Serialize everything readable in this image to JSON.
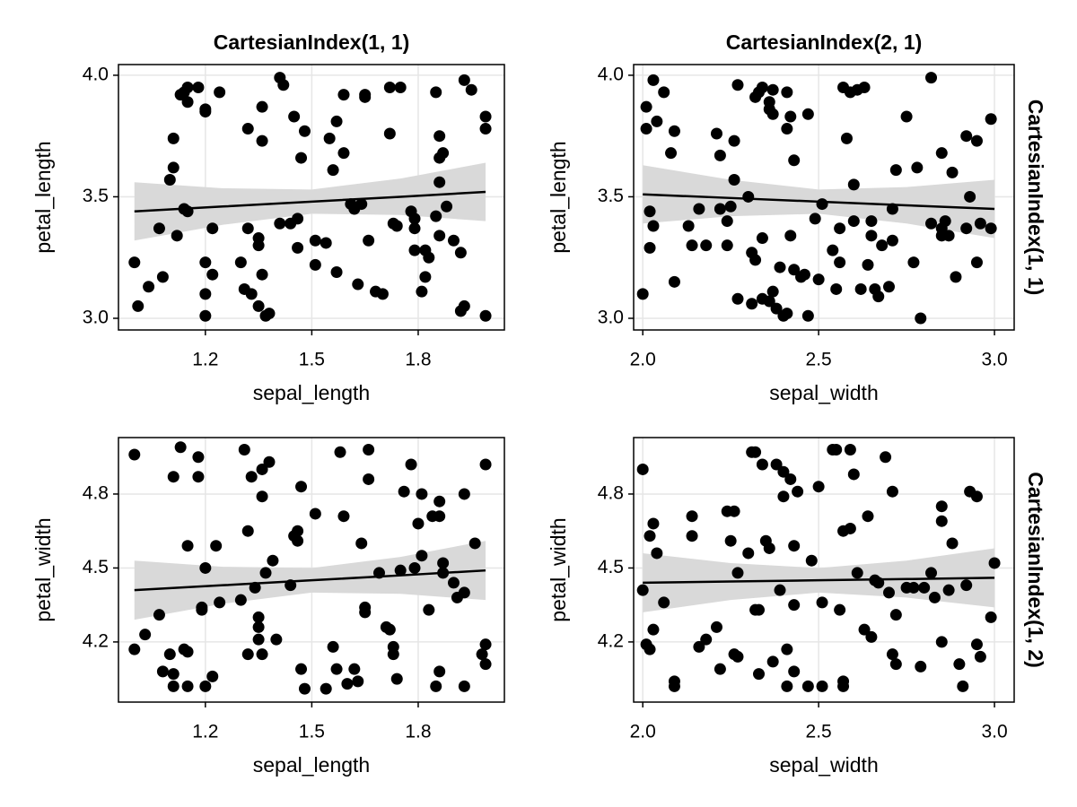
{
  "chart_data": [
    {
      "type": "scatter",
      "title": "CartesianIndex(1, 1)",
      "x_label": "sepal_length",
      "y_label": "petal_length",
      "xlim": [
        0.955,
        2.043
      ],
      "ylim": [
        2.952,
        4.044
      ],
      "xticks": [
        1.2,
        1.5,
        1.8
      ],
      "yticks": [
        {
          "value": 3,
          "label": "3.0"
        },
        3.5,
        {
          "value": 4,
          "label": "4.0"
        }
      ],
      "grid": true,
      "series": [
        {
          "color": "#000000",
          "x": [
            1.0,
            1.01,
            1.04,
            1.08,
            1.07,
            1.1,
            1.11,
            1.11,
            1.12,
            1.13,
            1.14,
            1.15,
            1.15,
            1.14,
            1.15,
            1.18,
            1.2,
            1.2,
            1.2,
            1.2,
            1.2,
            1.22,
            1.22,
            1.24,
            1.3,
            1.31,
            1.32,
            1.32,
            1.33,
            1.35,
            1.35,
            1.35,
            1.36,
            1.36,
            1.36,
            1.37,
            1.38,
            1.41,
            1.41,
            1.42,
            1.44,
            1.45,
            1.46,
            1.46,
            1.47,
            1.48,
            1.51,
            1.51,
            1.54,
            1.55,
            1.56,
            1.57,
            1.57,
            1.59,
            1.59,
            1.61,
            1.62,
            1.63,
            1.64,
            1.65,
            1.65,
            1.66,
            1.68,
            1.7,
            1.72,
            1.72,
            1.73,
            1.74,
            1.75,
            1.78,
            1.79,
            1.79,
            1.79,
            1.81,
            1.82,
            1.82,
            1.83,
            1.85,
            1.85,
            1.86,
            1.86,
            1.86,
            1.86,
            1.87,
            1.88,
            1.9,
            1.92,
            1.92,
            1.93,
            1.93,
            1.95,
            1.99,
            1.99,
            1.99
          ],
          "y": [
            3.23,
            3.05,
            3.13,
            3.17,
            3.37,
            3.57,
            3.62,
            3.74,
            3.34,
            3.92,
            3.93,
            3.89,
            3.95,
            3.45,
            3.44,
            3.95,
            3.01,
            3.86,
            3.85,
            3.23,
            3.1,
            3.18,
            3.37,
            3.93,
            3.23,
            3.12,
            3.78,
            3.37,
            3.1,
            3.33,
            3.3,
            3.05,
            3.87,
            3.73,
            3.18,
            3.01,
            3.02,
            3.39,
            3.99,
            3.96,
            3.39,
            3.83,
            3.41,
            3.29,
            3.66,
            3.77,
            3.22,
            3.32,
            3.31,
            3.74,
            3.61,
            3.81,
            3.19,
            3.68,
            3.92,
            3.47,
            3.45,
            3.14,
            3.47,
            3.92,
            3.91,
            3.32,
            3.11,
            3.1,
            3.76,
            3.95,
            3.39,
            3.38,
            3.95,
            3.44,
            3.28,
            3.37,
            3.41,
            3.11,
            3.17,
            3.28,
            3.25,
            3.93,
            3.42,
            3.34,
            3.56,
            3.66,
            3.75,
            3.68,
            3.46,
            3.32,
            3.27,
            3.03,
            3.98,
            3.05,
            3.94,
            3.83,
            3.01,
            3.78
          ]
        }
      ],
      "fit": {
        "color": "#000000",
        "band_color": "#d9d9d9",
        "x": [
          1.0,
          1.25,
          1.5,
          1.75,
          1.99
        ],
        "y": [
          3.44,
          3.46,
          3.48,
          3.5,
          3.52
        ],
        "lower": [
          3.32,
          3.385,
          3.43,
          3.425,
          3.4
        ],
        "upper": [
          3.56,
          3.535,
          3.53,
          3.575,
          3.64
        ]
      }
    },
    {
      "type": "scatter",
      "title": "CartesianIndex(2, 1)",
      "row_label": "CartesianIndex(1, 1)",
      "x_label": "sepal_width",
      "y_label": "petal_length",
      "xlim": [
        1.974,
        3.056
      ],
      "ylim": [
        2.952,
        4.044
      ],
      "xticks": [
        {
          "value": 2,
          "label": "2.0"
        },
        2.5,
        {
          "value": 3,
          "label": "3.0"
        }
      ],
      "yticks": [
        {
          "value": 3,
          "label": "3.0"
        },
        3.5,
        {
          "value": 4,
          "label": "4.0"
        }
      ],
      "grid": true,
      "series": [
        {
          "color": "#000000",
          "x": [
            2.0,
            2.01,
            2.01,
            2.02,
            2.02,
            2.03,
            2.04,
            2.03,
            2.06,
            2.08,
            2.09,
            2.09,
            2.13,
            2.14,
            2.16,
            2.18,
            2.21,
            2.22,
            2.22,
            2.24,
            2.24,
            2.25,
            2.26,
            2.26,
            2.27,
            2.27,
            2.3,
            2.31,
            2.31,
            2.32,
            2.32,
            2.33,
            2.34,
            2.34,
            2.34,
            2.36,
            2.36,
            2.37,
            2.36,
            2.37,
            2.37,
            2.38,
            2.39,
            2.4,
            2.41,
            2.41,
            2.41,
            2.42,
            2.42,
            2.43,
            2.43,
            2.45,
            2.46,
            2.47,
            2.47,
            2.49,
            2.5,
            2.51,
            2.54,
            2.55,
            2.56,
            2.56,
            2.57,
            2.58,
            2.59,
            2.6,
            2.6,
            2.61,
            2.62,
            2.63,
            2.64,
            2.65,
            2.65,
            2.66,
            2.67,
            2.68,
            2.7,
            2.71,
            2.71,
            2.72,
            2.75,
            2.77,
            2.78,
            2.79,
            2.82,
            2.82,
            2.85,
            2.85,
            2.85,
            2.86,
            2.87,
            2.88,
            2.89,
            2.92,
            2.92,
            2.93,
            2.95,
            2.95,
            2.96,
            2.99,
            2.99
          ],
          "y": [
            3.1,
            3.87,
            3.78,
            3.44,
            3.29,
            3.98,
            3.81,
            3.38,
            3.93,
            3.68,
            3.77,
            3.15,
            3.38,
            3.3,
            3.45,
            3.3,
            3.76,
            3.67,
            3.45,
            3.3,
            3.4,
            3.46,
            3.73,
            3.57,
            3.96,
            3.08,
            3.5,
            3.27,
            3.06,
            3.24,
            3.91,
            3.93,
            3.33,
            3.08,
            3.95,
            3.07,
            3.89,
            3.94,
            3.86,
            3.84,
            3.11,
            3.04,
            3.21,
            3.01,
            3.93,
            3.78,
            3.02,
            3.83,
            3.34,
            3.65,
            3.2,
            3.17,
            3.18,
            3.84,
            3.01,
            3.41,
            3.16,
            3.47,
            3.28,
            3.12,
            3.23,
            3.37,
            3.95,
            3.74,
            3.93,
            3.4,
            3.55,
            3.94,
            3.12,
            3.95,
            3.22,
            3.4,
            3.34,
            3.12,
            3.09,
            3.3,
            3.13,
            3.45,
            3.32,
            3.61,
            3.83,
            3.23,
            3.62,
            3.0,
            3.99,
            3.39,
            3.34,
            3.68,
            3.37,
            3.4,
            3.34,
            3.6,
            3.17,
            3.75,
            3.37,
            3.5,
            3.73,
            3.23,
            3.39,
            3.37,
            3.82
          ]
        }
      ],
      "fit": {
        "color": "#000000",
        "band_color": "#d9d9d9",
        "x": [
          2.0,
          2.25,
          2.5,
          2.75,
          3.0
        ],
        "y": [
          3.51,
          3.495,
          3.48,
          3.465,
          3.45
        ],
        "lower": [
          3.39,
          3.42,
          3.43,
          3.39,
          3.33
        ],
        "upper": [
          3.63,
          3.57,
          3.53,
          3.54,
          3.57
        ]
      }
    },
    {
      "type": "scatter",
      "x_label": "sepal_length",
      "y_label": "petal_width",
      "xlim": [
        0.955,
        2.043
      ],
      "ylim": [
        3.956,
        5.029
      ],
      "xticks": [
        1.2,
        1.5,
        1.8
      ],
      "yticks": [
        4.2,
        4.5,
        4.8
      ],
      "grid": true,
      "series": [
        {
          "color": "#000000",
          "x": [
            1.0,
            1.0,
            1.03,
            1.07,
            1.1,
            1.08,
            1.11,
            1.11,
            1.11,
            1.13,
            1.14,
            1.15,
            1.15,
            1.15,
            1.18,
            1.18,
            1.19,
            1.2,
            1.19,
            1.2,
            1.22,
            1.23,
            1.24,
            1.3,
            1.31,
            1.32,
            1.32,
            1.33,
            1.34,
            1.35,
            1.35,
            1.35,
            1.36,
            1.36,
            1.36,
            1.37,
            1.38,
            1.39,
            1.4,
            1.44,
            1.45,
            1.46,
            1.46,
            1.47,
            1.47,
            1.48,
            1.51,
            1.54,
            1.56,
            1.57,
            1.58,
            1.59,
            1.6,
            1.62,
            1.63,
            1.64,
            1.65,
            1.65,
            1.66,
            1.66,
            1.69,
            1.71,
            1.72,
            1.73,
            1.73,
            1.74,
            1.75,
            1.76,
            1.78,
            1.79,
            1.8,
            1.81,
            1.81,
            1.83,
            1.84,
            1.85,
            1.86,
            1.86,
            1.86,
            1.87,
            1.87,
            1.9,
            1.91,
            1.93,
            1.93,
            1.93,
            1.96,
            1.98,
            1.99,
            1.99,
            1.99
          ],
          "y": [
            4.96,
            4.17,
            4.23,
            4.31,
            4.15,
            4.08,
            4.87,
            4.07,
            4.02,
            4.99,
            4.17,
            4.59,
            4.16,
            4.02,
            4.87,
            4.95,
            4.34,
            4.5,
            4.33,
            4.02,
            4.06,
            4.59,
            4.36,
            4.37,
            4.98,
            4.15,
            4.65,
            4.87,
            4.42,
            4.3,
            4.26,
            4.21,
            4.15,
            4.79,
            4.9,
            4.48,
            4.93,
            4.53,
            4.21,
            4.43,
            4.63,
            4.65,
            4.61,
            4.83,
            4.09,
            4.01,
            4.72,
            4.01,
            4.18,
            4.09,
            4.97,
            4.71,
            4.03,
            4.09,
            4.04,
            4.6,
            4.34,
            4.32,
            4.98,
            4.86,
            4.48,
            4.26,
            4.25,
            4.18,
            4.15,
            4.05,
            4.49,
            4.81,
            4.92,
            4.5,
            4.68,
            4.8,
            4.55,
            4.33,
            4.71,
            4.02,
            4.71,
            4.77,
            4.08,
            4.52,
            4.48,
            4.44,
            4.38,
            4.02,
            4.4,
            4.8,
            4.6,
            4.15,
            4.92,
            4.11,
            4.19
          ]
        }
      ],
      "fit": {
        "color": "#000000",
        "band_color": "#d9d9d9",
        "x": [
          1.0,
          1.25,
          1.5,
          1.75,
          1.99
        ],
        "y": [
          4.41,
          4.43,
          4.45,
          4.47,
          4.49
        ],
        "lower": [
          4.29,
          4.355,
          4.4,
          4.395,
          4.37
        ],
        "upper": [
          4.53,
          4.505,
          4.5,
          4.545,
          4.61
        ]
      }
    },
    {
      "type": "scatter",
      "row_label": "CartesianIndex(1, 2)",
      "x_label": "sepal_width",
      "y_label": "petal_width",
      "xlim": [
        1.974,
        3.056
      ],
      "ylim": [
        3.956,
        5.029
      ],
      "xticks": [
        {
          "value": 2,
          "label": "2.0"
        },
        2.5,
        {
          "value": 3,
          "label": "3.0"
        }
      ],
      "yticks": [
        4.2,
        4.5,
        4.8
      ],
      "grid": true,
      "series": [
        {
          "color": "#000000",
          "x": [
            2.0,
            2.0,
            2.01,
            2.02,
            2.02,
            2.03,
            2.04,
            2.03,
            2.06,
            2.09,
            2.09,
            2.14,
            2.14,
            2.16,
            2.18,
            2.21,
            2.22,
            2.24,
            2.26,
            2.25,
            2.26,
            2.27,
            2.27,
            2.3,
            2.31,
            2.32,
            2.32,
            2.33,
            2.33,
            2.34,
            2.35,
            2.36,
            2.37,
            2.38,
            2.39,
            2.4,
            2.4,
            2.41,
            2.41,
            2.42,
            2.43,
            2.44,
            2.43,
            2.43,
            2.47,
            2.48,
            2.5,
            2.51,
            2.51,
            2.54,
            2.55,
            2.56,
            2.57,
            2.57,
            2.57,
            2.59,
            2.59,
            2.6,
            2.61,
            2.63,
            2.64,
            2.65,
            2.66,
            2.67,
            2.69,
            2.7,
            2.71,
            2.71,
            2.72,
            2.72,
            2.75,
            2.77,
            2.79,
            2.8,
            2.82,
            2.83,
            2.85,
            2.85,
            2.85,
            2.87,
            2.88,
            2.9,
            2.91,
            2.92,
            2.93,
            2.95,
            2.95,
            2.96,
            2.99,
            3.0
          ],
          "y": [
            4.9,
            4.41,
            4.19,
            4.17,
            4.63,
            4.68,
            4.56,
            4.25,
            4.36,
            4.04,
            4.02,
            4.71,
            4.63,
            4.18,
            4.21,
            4.26,
            4.09,
            4.73,
            4.73,
            4.61,
            4.15,
            4.14,
            4.48,
            4.56,
            4.97,
            4.97,
            4.33,
            4.33,
            4.07,
            4.92,
            4.61,
            4.58,
            4.12,
            4.92,
            4.41,
            4.89,
            4.79,
            4.17,
            4.02,
            4.86,
            4.35,
            4.81,
            4.59,
            4.08,
            4.02,
            4.53,
            4.83,
            4.02,
            4.36,
            4.98,
            4.98,
            4.33,
            4.04,
            4.02,
            4.65,
            4.98,
            4.66,
            4.88,
            4.48,
            4.25,
            4.71,
            4.22,
            4.45,
            4.44,
            4.95,
            4.4,
            4.81,
            4.15,
            4.31,
            4.11,
            4.42,
            4.42,
            4.1,
            4.42,
            4.48,
            4.38,
            4.75,
            4.69,
            4.2,
            4.41,
            4.6,
            4.11,
            4.02,
            4.43,
            4.81,
            4.79,
            4.19,
            4.14,
            4.3,
            4.52
          ]
        }
      ],
      "fit": {
        "color": "#000000",
        "band_color": "#d9d9d9",
        "x": [
          2.0,
          2.25,
          2.5,
          2.75,
          3.0
        ],
        "y": [
          4.44,
          4.445,
          4.45,
          4.455,
          4.46
        ],
        "lower": [
          4.32,
          4.37,
          4.4,
          4.38,
          4.34
        ],
        "upper": [
          4.56,
          4.52,
          4.5,
          4.53,
          4.58
        ]
      }
    }
  ]
}
